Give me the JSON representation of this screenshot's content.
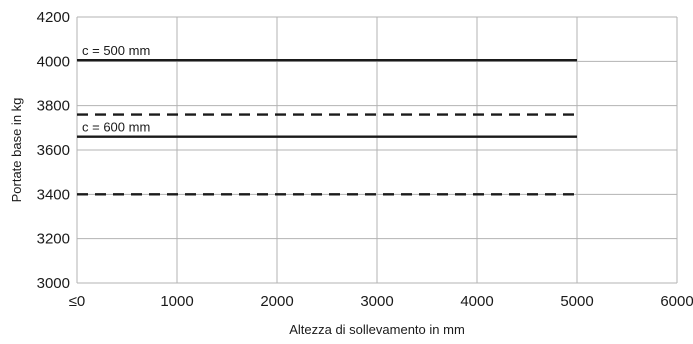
{
  "chart_data": {
    "type": "line",
    "xlabel": "Altezza di sollevamento in mm",
    "ylabel": "Portate base in kg",
    "xlim": [
      0,
      6000
    ],
    "ylim": [
      3000,
      4200
    ],
    "x_ticks": [
      "≤0",
      "1000",
      "2000",
      "3000",
      "4000",
      "5000",
      "6000"
    ],
    "y_ticks": [
      "3000",
      "3200",
      "3400",
      "3600",
      "3800",
      "4000",
      "4200"
    ],
    "grid": true,
    "series": [
      {
        "x": [
          0,
          5000
        ],
        "y": [
          4005,
          4005
        ],
        "style": "solid"
      },
      {
        "x": [
          0,
          5000
        ],
        "y": [
          3760,
          3760
        ],
        "style": "dashed"
      },
      {
        "x": [
          0,
          5000
        ],
        "y": [
          3660,
          3660
        ],
        "style": "solid"
      },
      {
        "x": [
          0,
          5000
        ],
        "y": [
          3400,
          3400
        ],
        "style": "dashed"
      }
    ],
    "annotations": [
      {
        "text": "c = 500 mm",
        "x": 0,
        "y": 4005
      },
      {
        "text": "c = 600 mm",
        "x": 0,
        "y": 3660
      }
    ],
    "colors": {
      "grid": "#b3b3b3",
      "line": "#1a1a1a"
    }
  }
}
